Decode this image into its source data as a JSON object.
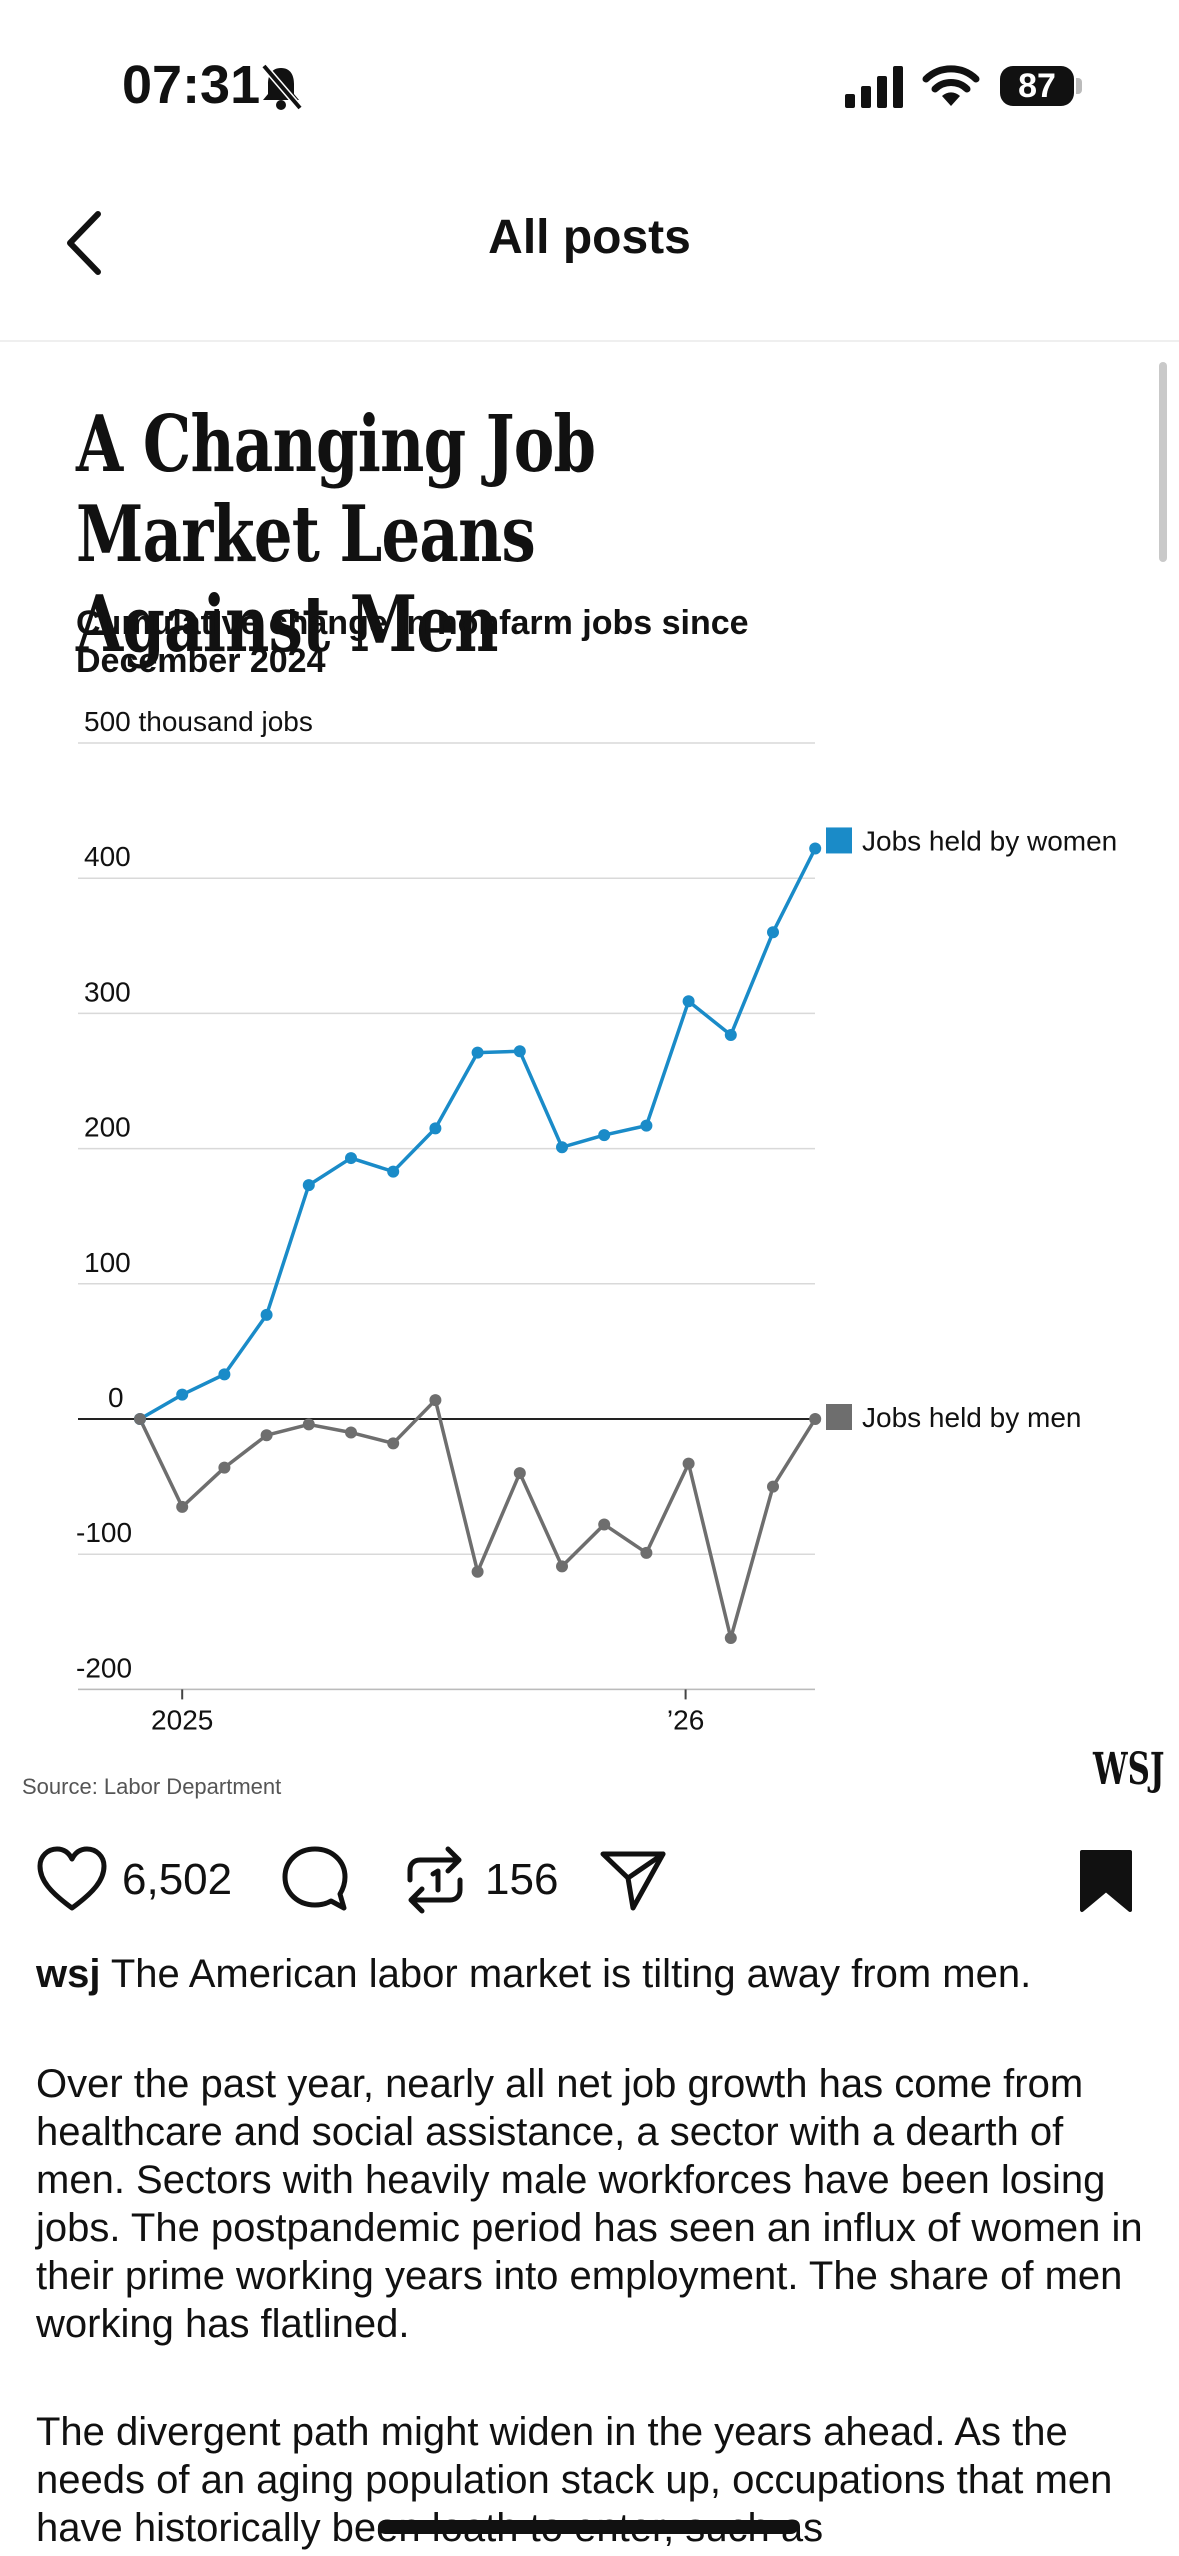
{
  "status_bar": {
    "time": "07:31",
    "battery_level": "87"
  },
  "nav": {
    "title": "All posts"
  },
  "post_image": {
    "headline": "A Changing Job Market Leans Against Men",
    "subtitle": "Cumulative change in nonfarm jobs since December 2024",
    "source": "Source: Labor Department",
    "logo": "WSJ"
  },
  "chart_data": {
    "type": "line",
    "title": "A Changing Job Market Leans Against Men",
    "subtitle": "Cumulative change in nonfarm jobs since December 2024",
    "ylabel": "500 thousand jobs",
    "y_ticks": [
      "500 thousand jobs",
      "400",
      "300",
      "200",
      "100",
      "0",
      "-100",
      "-200"
    ],
    "y_tick_values": [
      500,
      400,
      300,
      200,
      100,
      0,
      -100,
      -200
    ],
    "x_ticks": [
      "2025",
      "’26"
    ],
    "x_tick_index": [
      1,
      13
    ],
    "ylim": [
      -200,
      500
    ],
    "legend_placement": "right, at line ends",
    "series": [
      {
        "name": "Jobs held by women",
        "color": "#1a8bc8",
        "values": [
          0,
          18,
          33,
          77,
          173,
          193,
          183,
          215,
          271,
          272,
          201,
          210,
          217,
          309,
          284,
          360,
          422
        ]
      },
      {
        "name": "Jobs held by men",
        "color": "#6e6e6e",
        "values": [
          0,
          -65,
          -36,
          -12,
          -4,
          -10,
          -18,
          14,
          -113,
          -40,
          -109,
          -78,
          -99,
          -33,
          -162,
          -50,
          0
        ]
      }
    ]
  },
  "actions": {
    "like_count": "6,502",
    "repost_count": "156",
    "icons": [
      "heart-icon",
      "comment-icon",
      "repost-icon",
      "share-icon",
      "bookmark-icon"
    ]
  },
  "caption": {
    "username": "wsj",
    "lead": " The American labor market is tilting away from men.",
    "p1": "Over the past year, nearly all net job growth has come from healthcare and social assistance, a sector with a dearth of men. Sectors with heavily male workforces have been losing jobs. The postpandemic period has seen an influx of women in their prime working years into employment. The share of men working has flatlined.",
    "p2": "The divergent path might widen in the years ahead. As the needs of an aging population stack up, occupations that men have historically been loath to enter, such as"
  }
}
